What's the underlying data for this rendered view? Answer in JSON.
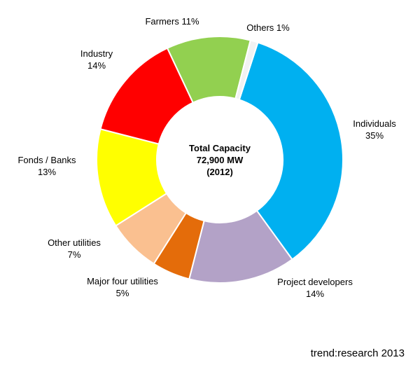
{
  "chart_data": {
    "type": "donut",
    "slices": [
      {
        "name": "Individuals",
        "value": 35,
        "label_lines": [
          "Individuals",
          "35%"
        ],
        "color": "#00B0F0"
      },
      {
        "name": "Project developers",
        "value": 14,
        "label_lines": [
          "Project developers",
          "14%"
        ],
        "color": "#B3A2C7"
      },
      {
        "name": "Major four utilities",
        "value": 5,
        "label_lines": [
          "Major four utilities",
          "5%"
        ],
        "color": "#E46C0A"
      },
      {
        "name": "Other utilities",
        "value": 7,
        "label_lines": [
          "Other utilities",
          "7%"
        ],
        "color": "#FAC090"
      },
      {
        "name": "Fonds / Banks",
        "value": 13,
        "label_lines": [
          "Fonds / Banks",
          "13%"
        ],
        "color": "#FFFF00"
      },
      {
        "name": "Industry",
        "value": 14,
        "label_lines": [
          "Industry",
          "14%"
        ],
        "color": "#FF0000"
      },
      {
        "name": "Farmers",
        "value": 11,
        "label_lines": [
          "Farmers 11%"
        ],
        "color": "#92D050"
      },
      {
        "name": "Others",
        "value": 1,
        "label_lines": [
          "Others 1%"
        ],
        "color": "#F2F2F2"
      }
    ],
    "center_text": [
      "Total Capacity",
      "72,900 MW",
      "(2012)"
    ]
  },
  "source": "trend:research 2013"
}
